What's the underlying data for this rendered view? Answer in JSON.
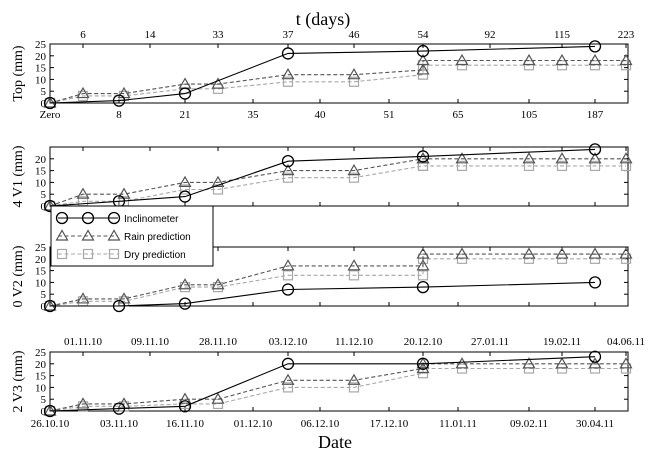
{
  "header": {
    "top_axis_title": "t (days)"
  },
  "footer": {
    "bottom_axis_title": "Date"
  },
  "legend": {
    "position": "center-left",
    "entries": [
      {
        "label": "Inclinometer",
        "series": "inclinometer"
      },
      {
        "label": "Rain prediction",
        "series": "rain"
      },
      {
        "label": "Dry prediction",
        "series": "dry"
      }
    ]
  },
  "colors": {
    "inclinometer": "#000000",
    "rain": "#555555",
    "dry": "#a8a8a8"
  },
  "chart_data": {
    "type": "line",
    "x_unit": "t (days)",
    "xlim": [
      0,
      223
    ],
    "top_axis_ticks_upper": [
      "6",
      "14",
      "33",
      "37",
      "46",
      "54",
      "92",
      "115",
      "223"
    ],
    "top_axis_ticks_lower": [
      "Zero",
      "8",
      "21",
      "35",
      "40",
      "51",
      "65",
      "105",
      "187"
    ],
    "date_ticks_upper": [
      "01.11.10",
      "09.11.10",
      "28.11.10",
      "03.12.10",
      "11.12.10",
      "20.12.10",
      "27.01.11",
      "19.02.11",
      "04.06.11"
    ],
    "date_ticks_lower": [
      "26.10.10",
      "03.11.10",
      "16.11.10",
      "01.12.10",
      "06.12.10",
      "17.12.10",
      "11.01.11",
      "09.02.11",
      "30.04.11"
    ],
    "panels": [
      {
        "ylabel": "Top (mm)",
        "ylim": [
          0,
          25
        ],
        "yticks": [
          "0",
          "5",
          "10",
          "15",
          "20",
          "25"
        ],
        "series": [
          {
            "key": "inclinometer",
            "marker": "circle",
            "line": "solid",
            "x": [
              0,
              8,
              21,
              37,
              65,
              187
            ],
            "y": [
              0,
              1,
              4,
              21,
              22,
              24
            ]
          },
          {
            "key": "rain",
            "marker": "triangle",
            "line": "dashed",
            "x": [
              0,
              6,
              14,
              21,
              33,
              37,
              46,
              54,
              65,
              92,
              105,
              115,
              187,
              223
            ],
            "y": [
              0,
              4,
              4,
              8,
              8,
              12,
              12,
              14,
              18,
              18,
              18,
              18,
              18,
              18
            ]
          },
          {
            "key": "dry",
            "marker": "square",
            "line": "dashed",
            "x": [
              0,
              6,
              14,
              21,
              33,
              37,
              46,
              54,
              65,
              92,
              105,
              115,
              187,
              223
            ],
            "y": [
              0,
              3,
              3,
              6,
              6,
              9,
              9,
              12,
              16,
              16,
              16,
              16,
              16,
              16
            ]
          }
        ]
      },
      {
        "ylabel": "4 V1 (mm)",
        "ylim": [
          0,
          25
        ],
        "yticks": [
          "0",
          "5",
          "10",
          "15",
          "20"
        ],
        "series": [
          {
            "key": "inclinometer",
            "marker": "circle",
            "line": "solid",
            "x": [
              0,
              8,
              21,
              37,
              65,
              187
            ],
            "y": [
              0,
              2,
              4,
              19,
              21,
              24
            ]
          },
          {
            "key": "rain",
            "marker": "triangle",
            "line": "dashed",
            "x": [
              0,
              6,
              14,
              21,
              33,
              37,
              46,
              54,
              65,
              92,
              105,
              115,
              187,
              223
            ],
            "y": [
              0,
              5,
              5,
              10,
              10,
              15,
              15,
              20,
              20,
              20,
              20,
              20,
              20,
              20
            ]
          },
          {
            "key": "dry",
            "marker": "square",
            "line": "dashed",
            "x": [
              0,
              6,
              14,
              21,
              33,
              37,
              46,
              54,
              65,
              92,
              105,
              115,
              187,
              223
            ],
            "y": [
              0,
              2,
              2,
              7,
              7,
              12,
              12,
              17,
              17,
              17,
              17,
              17,
              17,
              17
            ]
          }
        ]
      },
      {
        "ylabel": "0 V2 (mm)",
        "ylim": [
          0,
          25
        ],
        "yticks": [
          "0",
          "5",
          "10",
          "15",
          "20",
          "25"
        ],
        "series": [
          {
            "key": "inclinometer",
            "marker": "circle",
            "line": "solid",
            "x": [
              0,
              8,
              21,
              37,
              65,
              187
            ],
            "y": [
              0,
              0,
              1,
              7,
              8,
              10
            ]
          },
          {
            "key": "rain",
            "marker": "triangle",
            "line": "dashed",
            "x": [
              0,
              6,
              14,
              21,
              33,
              37,
              46,
              54,
              65,
              92,
              105,
              115,
              187,
              223
            ],
            "y": [
              0,
              3,
              3,
              9,
              9,
              17,
              17,
              17,
              22,
              22,
              22,
              22,
              22,
              22
            ]
          },
          {
            "key": "dry",
            "marker": "square",
            "line": "dashed",
            "x": [
              0,
              6,
              14,
              21,
              33,
              37,
              46,
              54,
              65,
              92,
              105,
              115,
              187,
              223
            ],
            "y": [
              0,
              2,
              2,
              8,
              8,
              13,
              13,
              13,
              20,
              20,
              20,
              20,
              20,
              20
            ]
          }
        ]
      },
      {
        "ylabel": "2 V3 (mm)",
        "ylim": [
          0,
          25
        ],
        "yticks": [
          "0",
          "5",
          "10",
          "15",
          "20",
          "25"
        ],
        "series": [
          {
            "key": "inclinometer",
            "marker": "circle",
            "line": "solid",
            "x": [
              0,
              8,
              21,
              37,
              65,
              187
            ],
            "y": [
              0,
              1,
              2,
              20,
              20,
              23
            ]
          },
          {
            "key": "rain",
            "marker": "triangle",
            "line": "dashed",
            "x": [
              0,
              6,
              14,
              21,
              33,
              37,
              46,
              54,
              65,
              92,
              105,
              115,
              187,
              223
            ],
            "y": [
              0,
              3,
              3,
              5,
              5,
              13,
              13,
              18,
              20,
              20,
              20,
              20,
              20,
              20
            ]
          },
          {
            "key": "dry",
            "marker": "square",
            "line": "dashed",
            "x": [
              0,
              6,
              14,
              21,
              33,
              37,
              46,
              54,
              65,
              92,
              105,
              115,
              187,
              223
            ],
            "y": [
              0,
              2,
              2,
              3,
              3,
              10,
              10,
              16,
              18,
              18,
              18,
              18,
              18,
              18
            ]
          }
        ]
      }
    ]
  }
}
